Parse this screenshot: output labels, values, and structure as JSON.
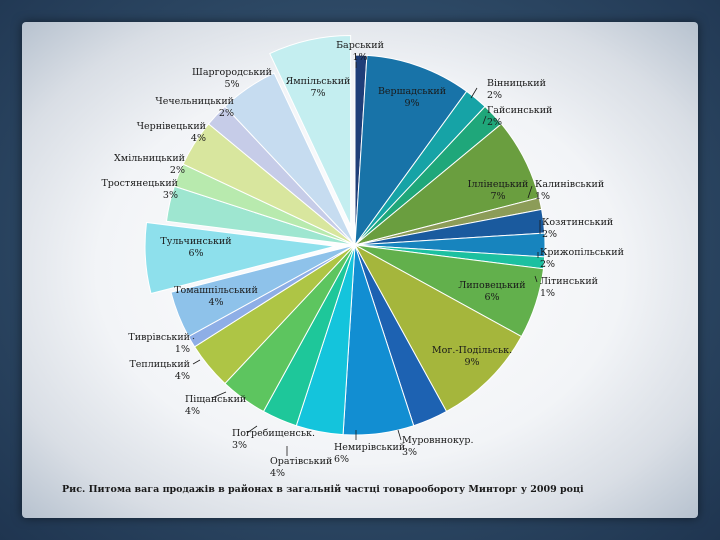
{
  "chart_data": {
    "type": "pie",
    "title": "",
    "caption": "Рис.  Питома вага продажів в районах в загальній частці товарообороту Минторг у 2009 році",
    "slices": [
      {
        "name": "Барський",
        "label": "Барський\n1%",
        "percent": "1%",
        "value": 1,
        "color": "#1f3e78",
        "explode": 0
      },
      {
        "name": "Вершадський",
        "label": "Вершадський\n9%",
        "percent": "9%",
        "value": 9,
        "color": "#1873a8",
        "explode": 0
      },
      {
        "name": "Вінницький",
        "label": "Вінницький\n2%",
        "percent": "2%",
        "value": 2,
        "color": "#16a3a6",
        "explode": 0
      },
      {
        "name": "Гайсинський",
        "label": "Гайсинський\n2%",
        "percent": "2%",
        "value": 2,
        "color": "#1fa77a",
        "explode": 0
      },
      {
        "name": "Іллінецький",
        "label": "Іллінецький\n7%",
        "percent": "7%",
        "value": 7,
        "color": "#6a9e3f",
        "explode": 0
      },
      {
        "name": "Калинівський",
        "label": "Калинівський\n1%",
        "percent": "1%",
        "value": 1,
        "color": "#8c9c58",
        "explode": 0
      },
      {
        "name": "Козятинський",
        "label": "Козятинський\n2%",
        "percent": "2%",
        "value": 2,
        "color": "#1a5a9e",
        "explode": 0
      },
      {
        "name": "Крижопільський",
        "label": "Крижопільський\n2%",
        "percent": "2%",
        "value": 2,
        "color": "#1784be",
        "explode": 0
      },
      {
        "name": "Літинський",
        "label": "Літинський\n1%",
        "percent": "1%",
        "value": 1,
        "color": "#1cc0a0",
        "explode": 0
      },
      {
        "name": "Липовецький",
        "label": "Липовецький\n6%",
        "percent": "6%",
        "value": 6,
        "color": "#62b04c",
        "explode": 0
      },
      {
        "name": "Мог.-Подільськ.",
        "label": "Мог.-Подільськ.\n9%",
        "percent": "9%",
        "value": 9,
        "color": "#a5b63c",
        "explode": 0
      },
      {
        "name": "Муровннокур.",
        "label": "Муровннокур.\n3%",
        "percent": "3%",
        "value": 3,
        "color": "#1d62b2",
        "explode": 0
      },
      {
        "name": "Немирівський",
        "label": "Немирівський\n6%",
        "percent": "6%",
        "value": 6,
        "color": "#128ed2",
        "explode": 0
      },
      {
        "name": "Оратівський",
        "label": "Оратівський\n4%",
        "percent": "4%",
        "value": 4,
        "color": "#14c4dc",
        "explode": 0
      },
      {
        "name": "Погребищенськ.",
        "label": "Погребищенськ.\n3%",
        "percent": "3%",
        "value": 3,
        "color": "#1ec79a",
        "explode": 0
      },
      {
        "name": "Піщанський",
        "label": "Піщанський\n4%",
        "percent": "4%",
        "value": 4,
        "color": "#5dc55f",
        "explode": 0
      },
      {
        "name": "Теплицький",
        "label": "Теплицький\n4%",
        "percent": "4%",
        "value": 4,
        "color": "#aec545",
        "explode": 0
      },
      {
        "name": "Тиврівський",
        "label": "Тиврівський\n1%",
        "percent": "1%",
        "value": 1,
        "color": "#8eaee6",
        "explode": 0
      },
      {
        "name": "Томашпільський",
        "label": "Томашпільський\n4%",
        "percent": "4%",
        "value": 4,
        "color": "#8ec2ea",
        "explode": 0
      },
      {
        "name": "Тульчинський",
        "label": "Тульчинський\n6%",
        "percent": "6%",
        "value": 6,
        "color": "#8ee0ec",
        "explode": 1
      },
      {
        "name": "Тростянецький",
        "label": "Тростянецький\n3%",
        "percent": "3%",
        "value": 3,
        "color": "#9ee6d0",
        "explode": 0
      },
      {
        "name": "Хмільницький",
        "label": "Хмільницький\n2%",
        "percent": "2%",
        "value": 2,
        "color": "#b8eaae",
        "explode": 0
      },
      {
        "name": "Чернівецький",
        "label": "Чернівецький\n4%",
        "percent": "4%",
        "value": 4,
        "color": "#d8e69e",
        "explode": 0
      },
      {
        "name": "Чечельницький",
        "label": "Чечельницький\n2%",
        "percent": "2%",
        "value": 2,
        "color": "#c6cce8",
        "explode": 0
      },
      {
        "name": "Шаргородський",
        "label": "Шаргородський\n5%",
        "percent": "5%",
        "value": 5,
        "color": "#c6dcf0",
        "explode": 0
      },
      {
        "name": "Ямпільський",
        "label": "Ямпільський\n7%",
        "percent": "7%",
        "value": 7,
        "color": "#c4eef0",
        "explode": 1
      }
    ],
    "start_angle_deg": 0,
    "direction": "clockwise",
    "legend": "none"
  }
}
